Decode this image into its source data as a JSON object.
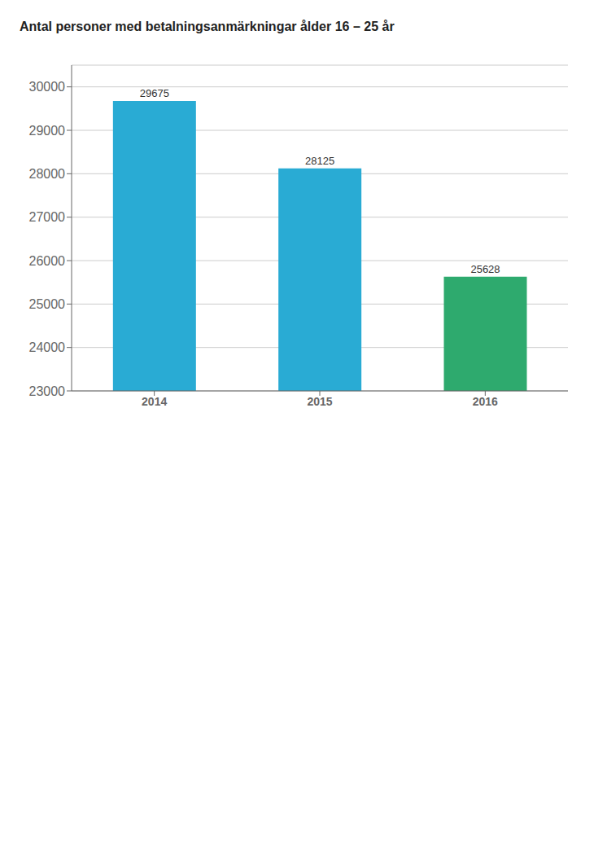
{
  "chart_data": {
    "type": "bar",
    "title": "Antal personer med betalningsanmärkningar ålder 16 – 25 år",
    "categories": [
      "2014",
      "2015",
      "2016"
    ],
    "values": [
      29675,
      28125,
      25628
    ],
    "colors": [
      "#29ABD4",
      "#29ABD4",
      "#2EAA6E"
    ],
    "ylim": [
      23000,
      30500
    ],
    "yticks": [
      23000,
      24000,
      25000,
      26000,
      27000,
      28000,
      29000,
      30000
    ],
    "grid": true,
    "data_labels": true
  }
}
